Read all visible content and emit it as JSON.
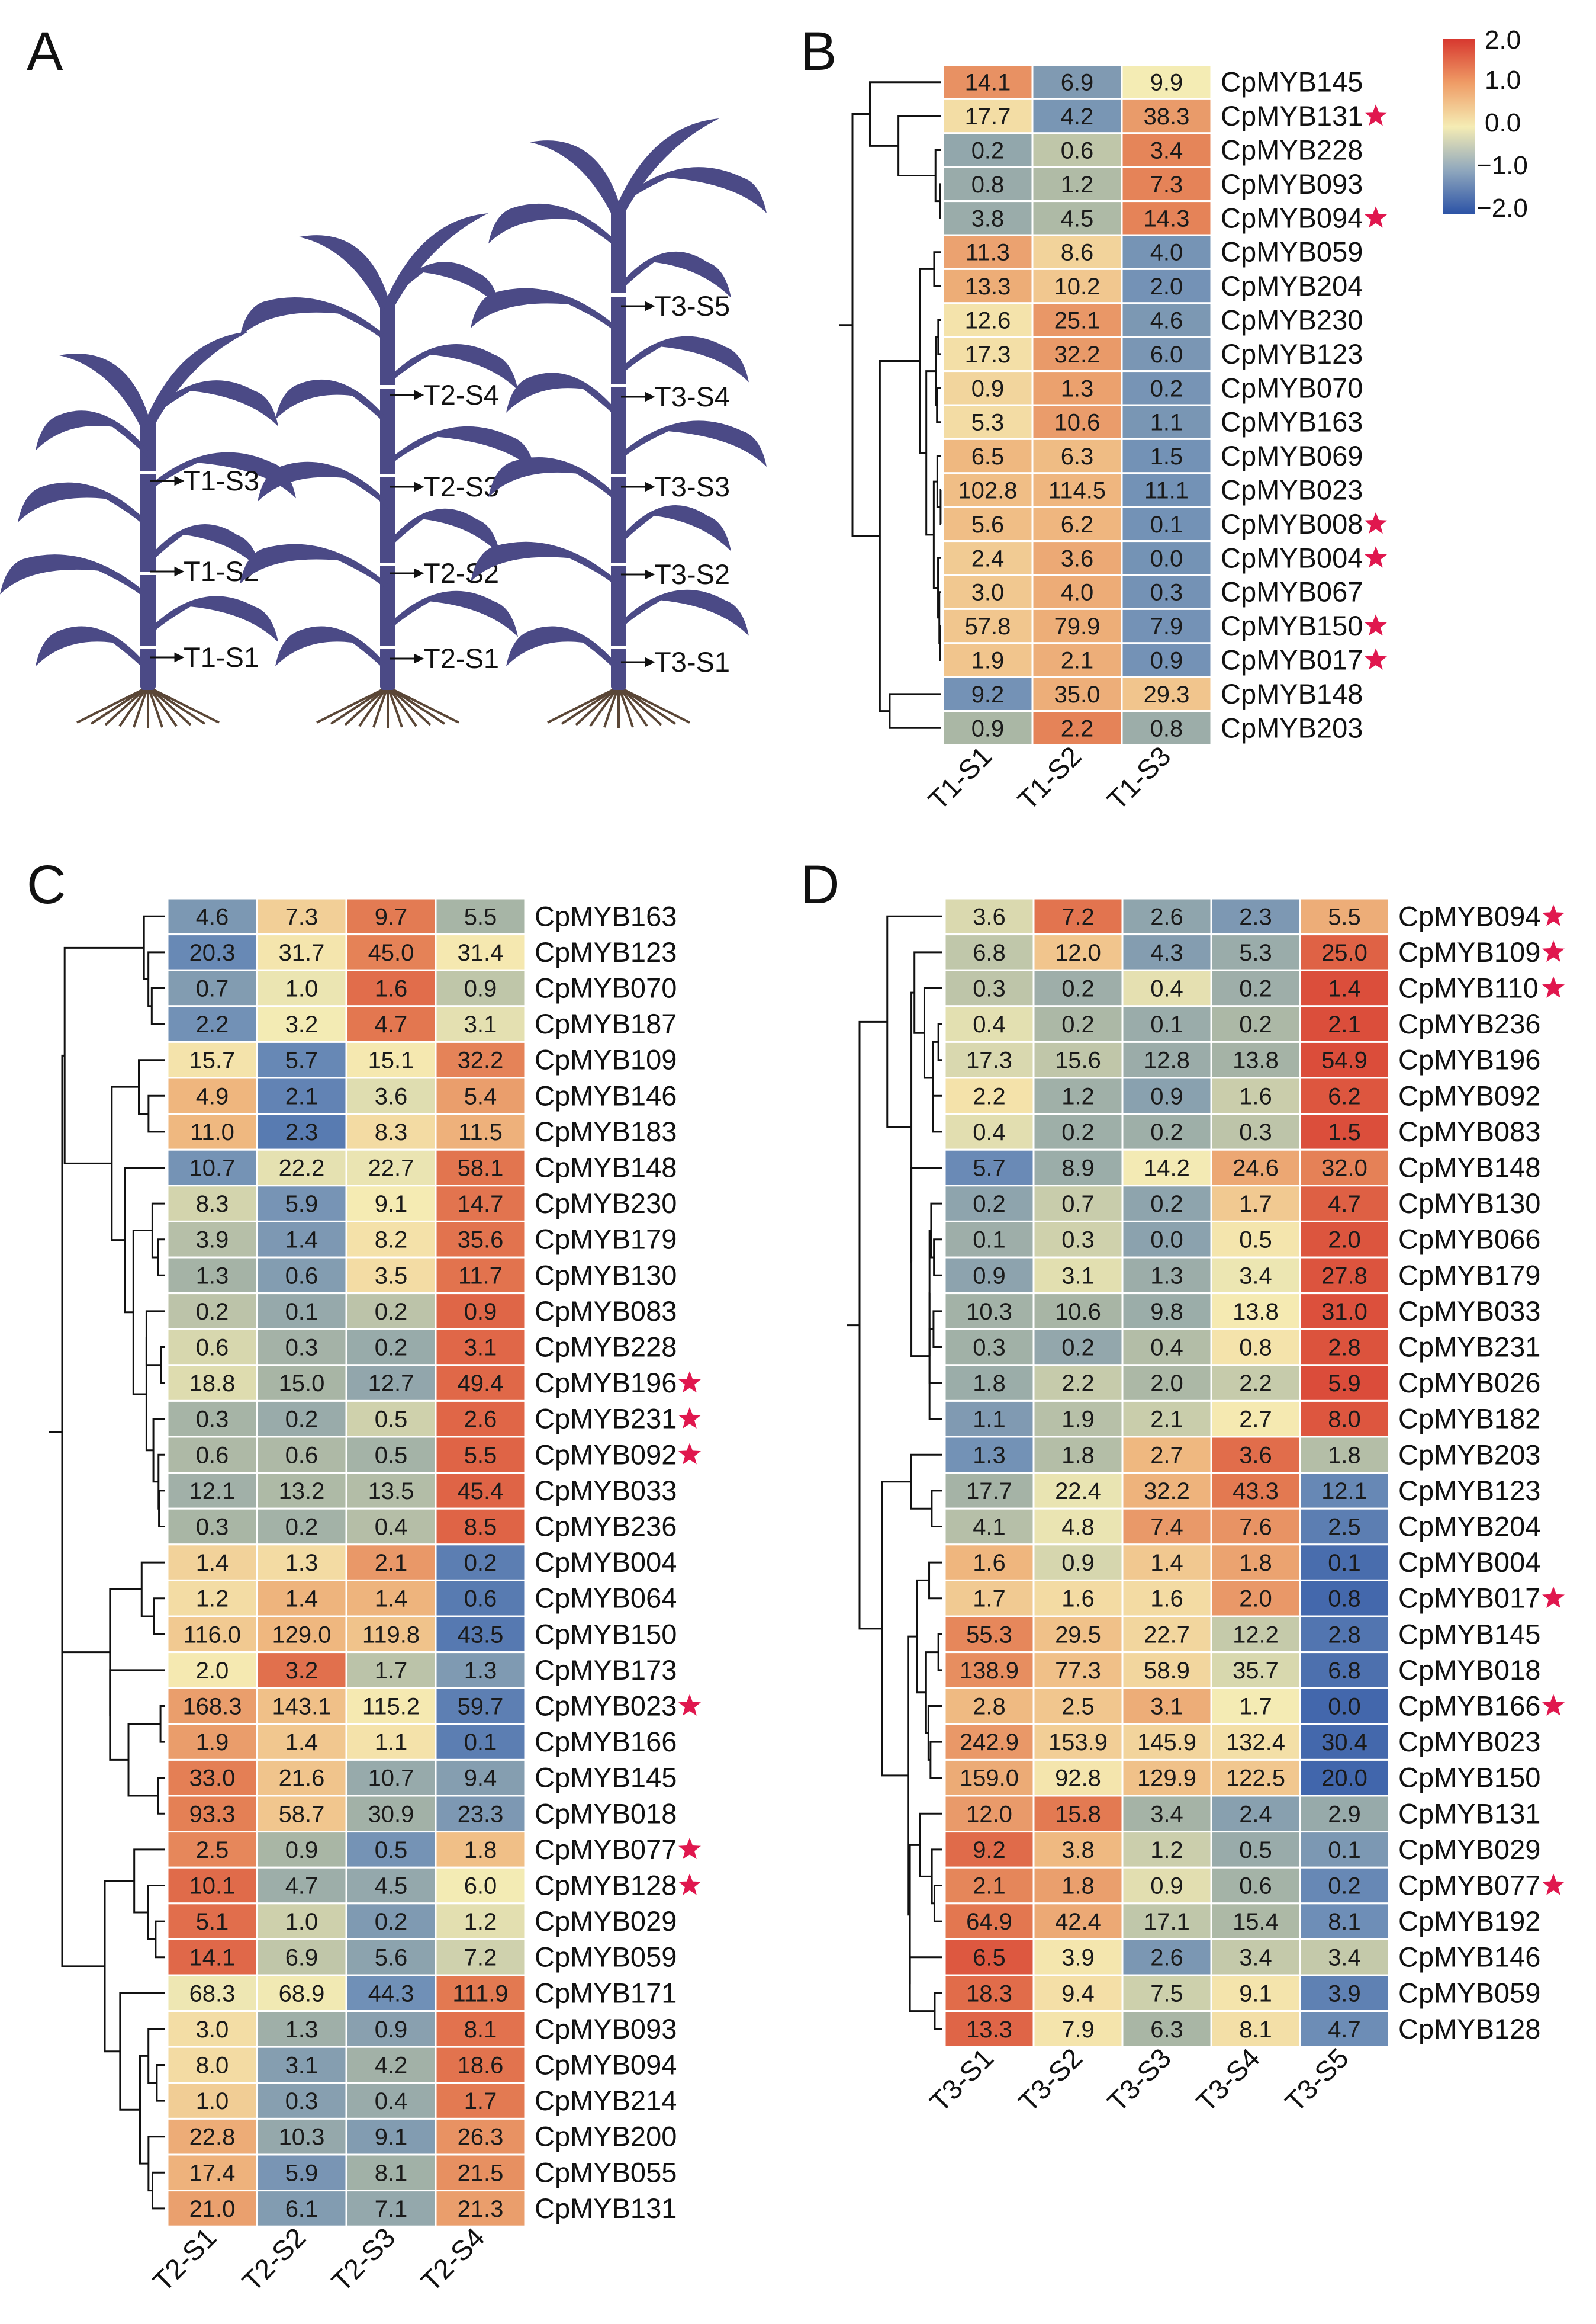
{
  "panel_letters": [
    "A",
    "B",
    "C",
    "D"
  ],
  "colors": {
    "plant": "#4b4a86",
    "plant_dark": "#3a3970",
    "root": "#5a4636",
    "star": "#e0174e",
    "dendrogram": "#111111",
    "scale_low": "#2b52a6",
    "scale_mid": "#f5ecb4",
    "scale_high": "#d7382f"
  },
  "icons": {
    "plant": "sorghum-plant-icon",
    "star": "red-star-icon",
    "arrow": "arrow-right-icon"
  },
  "plants": [
    {
      "name": "T1",
      "labels": [
        "T1-S3",
        "T1-S2",
        "T1-S1"
      ]
    },
    {
      "name": "T2",
      "labels": [
        "T2-S4",
        "T2-S3",
        "T2-S2",
        "T2-S1"
      ]
    },
    {
      "name": "T3",
      "labels": [
        "T3-S5",
        "T3-S4",
        "T3-S3",
        "T3-S2",
        "T3-S1"
      ]
    }
  ],
  "legend": {
    "ticks": [
      "2.0",
      "1.0",
      "0.0",
      "−1.0",
      "−2.0"
    ],
    "range": [
      -2.0,
      2.0
    ]
  },
  "chart_data": [
    {
      "type": "heatmap",
      "panel": "B",
      "title": "",
      "columns": [
        "T1-S1",
        "T1-S2",
        "T1-S3"
      ],
      "rows": [
        {
          "gene": "CpMYB145",
          "values": [
            14.1,
            6.9,
            9.9
          ],
          "star": false
        },
        {
          "gene": "CpMYB131",
          "values": [
            17.7,
            4.2,
            38.3
          ],
          "star": true
        },
        {
          "gene": "CpMYB228",
          "values": [
            0.2,
            0.6,
            3.4
          ],
          "star": false
        },
        {
          "gene": "CpMYB093",
          "values": [
            0.8,
            1.2,
            7.3
          ],
          "star": false
        },
        {
          "gene": "CpMYB094",
          "values": [
            3.8,
            4.5,
            14.3
          ],
          "star": true
        },
        {
          "gene": "CpMYB059",
          "values": [
            11.3,
            8.6,
            4.0
          ],
          "star": false
        },
        {
          "gene": "CpMYB204",
          "values": [
            13.3,
            10.2,
            2.0
          ],
          "star": false
        },
        {
          "gene": "CpMYB230",
          "values": [
            12.6,
            25.1,
            4.6
          ],
          "star": false
        },
        {
          "gene": "CpMYB123",
          "values": [
            17.3,
            32.2,
            6.0
          ],
          "star": false
        },
        {
          "gene": "CpMYB070",
          "values": [
            0.9,
            1.3,
            0.2
          ],
          "star": false
        },
        {
          "gene": "CpMYB163",
          "values": [
            5.3,
            10.6,
            1.1
          ],
          "star": false
        },
        {
          "gene": "CpMYB069",
          "values": [
            6.5,
            6.3,
            1.5
          ],
          "star": false
        },
        {
          "gene": "CpMYB023",
          "values": [
            102.8,
            114.5,
            11.1
          ],
          "star": false
        },
        {
          "gene": "CpMYB008",
          "values": [
            5.6,
            6.2,
            0.1
          ],
          "star": true
        },
        {
          "gene": "CpMYB004",
          "values": [
            2.4,
            3.6,
            0.0
          ],
          "star": true
        },
        {
          "gene": "CpMYB067",
          "values": [
            3.0,
            4.0,
            0.3
          ],
          "star": false
        },
        {
          "gene": "CpMYB150",
          "values": [
            57.8,
            79.9,
            7.9
          ],
          "star": true
        },
        {
          "gene": "CpMYB017",
          "values": [
            1.9,
            2.1,
            0.9
          ],
          "star": true
        },
        {
          "gene": "CpMYB148",
          "values": [
            9.2,
            35.0,
            29.3
          ],
          "star": false
        },
        {
          "gene": "CpMYB203",
          "values": [
            0.9,
            2.2,
            0.8
          ],
          "star": false
        }
      ]
    },
    {
      "type": "heatmap",
      "panel": "C",
      "title": "",
      "columns": [
        "T2-S1",
        "T2-S2",
        "T2-S3",
        "T2-S4"
      ],
      "rows": [
        {
          "gene": "CpMYB163",
          "values": [
            4.6,
            7.3,
            9.7,
            5.5
          ],
          "star": false
        },
        {
          "gene": "CpMYB123",
          "values": [
            20.3,
            31.7,
            45.0,
            31.4
          ],
          "star": false
        },
        {
          "gene": "CpMYB070",
          "values": [
            0.7,
            1.0,
            1.6,
            0.9
          ],
          "star": false
        },
        {
          "gene": "CpMYB187",
          "values": [
            2.2,
            3.2,
            4.7,
            3.1
          ],
          "star": false
        },
        {
          "gene": "CpMYB109",
          "values": [
            15.7,
            5.7,
            15.1,
            32.2
          ],
          "star": false
        },
        {
          "gene": "CpMYB146",
          "values": [
            4.9,
            2.1,
            3.6,
            5.4
          ],
          "star": false
        },
        {
          "gene": "CpMYB183",
          "values": [
            11.0,
            2.3,
            8.3,
            11.5
          ],
          "star": false
        },
        {
          "gene": "CpMYB148",
          "values": [
            10.7,
            22.2,
            22.7,
            58.1
          ],
          "star": false
        },
        {
          "gene": "CpMYB230",
          "values": [
            8.3,
            5.9,
            9.1,
            14.7
          ],
          "star": false
        },
        {
          "gene": "CpMYB179",
          "values": [
            3.9,
            1.4,
            8.2,
            35.6
          ],
          "star": false
        },
        {
          "gene": "CpMYB130",
          "values": [
            1.3,
            0.6,
            3.5,
            11.7
          ],
          "star": false
        },
        {
          "gene": "CpMYB083",
          "values": [
            0.2,
            0.1,
            0.2,
            0.9
          ],
          "star": false
        },
        {
          "gene": "CpMYB228",
          "values": [
            0.6,
            0.3,
            0.2,
            3.1
          ],
          "star": false
        },
        {
          "gene": "CpMYB196",
          "values": [
            18.8,
            15.0,
            12.7,
            49.4
          ],
          "star": true
        },
        {
          "gene": "CpMYB231",
          "values": [
            0.3,
            0.2,
            0.5,
            2.6
          ],
          "star": true
        },
        {
          "gene": "CpMYB092",
          "values": [
            0.6,
            0.6,
            0.5,
            5.5
          ],
          "star": true
        },
        {
          "gene": "CpMYB033",
          "values": [
            12.1,
            13.2,
            13.5,
            45.4
          ],
          "star": false
        },
        {
          "gene": "CpMYB236",
          "values": [
            0.3,
            0.2,
            0.4,
            8.5
          ],
          "star": false
        },
        {
          "gene": "CpMYB004",
          "values": [
            1.4,
            1.3,
            2.1,
            0.2
          ],
          "star": false
        },
        {
          "gene": "CpMYB064",
          "values": [
            1.2,
            1.4,
            1.4,
            0.6
          ],
          "star": false
        },
        {
          "gene": "CpMYB150",
          "values": [
            116.0,
            129.0,
            119.8,
            43.5
          ],
          "star": false
        },
        {
          "gene": "CpMYB173",
          "values": [
            2.0,
            3.2,
            1.7,
            1.3
          ],
          "star": false
        },
        {
          "gene": "CpMYB023",
          "values": [
            168.3,
            143.1,
            115.2,
            59.7
          ],
          "star": true
        },
        {
          "gene": "CpMYB166",
          "values": [
            1.9,
            1.4,
            1.1,
            0.1
          ],
          "star": false
        },
        {
          "gene": "CpMYB145",
          "values": [
            33.0,
            21.6,
            10.7,
            9.4
          ],
          "star": false
        },
        {
          "gene": "CpMYB018",
          "values": [
            93.3,
            58.7,
            30.9,
            23.3
          ],
          "star": false
        },
        {
          "gene": "CpMYB077",
          "values": [
            2.5,
            0.9,
            0.5,
            1.8
          ],
          "star": true
        },
        {
          "gene": "CpMYB128",
          "values": [
            10.1,
            4.7,
            4.5,
            6.0
          ],
          "star": true
        },
        {
          "gene": "CpMYB029",
          "values": [
            5.1,
            1.0,
            0.2,
            1.2
          ],
          "star": false
        },
        {
          "gene": "CpMYB059",
          "values": [
            14.1,
            6.9,
            5.6,
            7.2
          ],
          "star": false
        },
        {
          "gene": "CpMYB171",
          "values": [
            68.3,
            68.9,
            44.3,
            111.9
          ],
          "star": false
        },
        {
          "gene": "CpMYB093",
          "values": [
            3.0,
            1.3,
            0.9,
            8.1
          ],
          "star": false
        },
        {
          "gene": "CpMYB094",
          "values": [
            8.0,
            3.1,
            4.2,
            18.6
          ],
          "star": false
        },
        {
          "gene": "CpMYB214",
          "values": [
            1.0,
            0.3,
            0.4,
            1.7
          ],
          "star": false
        },
        {
          "gene": "CpMYB200",
          "values": [
            22.8,
            10.3,
            9.1,
            26.3
          ],
          "star": false
        },
        {
          "gene": "CpMYB055",
          "values": [
            17.4,
            5.9,
            8.1,
            21.5
          ],
          "star": false
        },
        {
          "gene": "CpMYB131",
          "values": [
            21.0,
            6.1,
            7.1,
            21.3
          ],
          "star": false
        }
      ]
    },
    {
      "type": "heatmap",
      "panel": "D",
      "title": "",
      "columns": [
        "T3-S1",
        "T3-S2",
        "T3-S3",
        "T3-S4",
        "T3-S5"
      ],
      "rows": [
        {
          "gene": "CpMYB094",
          "values": [
            3.6,
            7.2,
            2.6,
            2.3,
            5.5
          ],
          "star": true
        },
        {
          "gene": "CpMYB109",
          "values": [
            6.8,
            12.0,
            4.3,
            5.3,
            25.0
          ],
          "star": true
        },
        {
          "gene": "CpMYB110",
          "values": [
            0.3,
            0.2,
            0.4,
            0.2,
            1.4
          ],
          "star": true
        },
        {
          "gene": "CpMYB236",
          "values": [
            0.4,
            0.2,
            0.1,
            0.2,
            2.1
          ],
          "star": false
        },
        {
          "gene": "CpMYB196",
          "values": [
            17.3,
            15.6,
            12.8,
            13.8,
            54.9
          ],
          "star": false
        },
        {
          "gene": "CpMYB092",
          "values": [
            2.2,
            1.2,
            0.9,
            1.6,
            6.2
          ],
          "star": false
        },
        {
          "gene": "CpMYB083",
          "values": [
            0.4,
            0.2,
            0.2,
            0.3,
            1.5
          ],
          "star": false
        },
        {
          "gene": "CpMYB148",
          "values": [
            5.7,
            8.9,
            14.2,
            24.6,
            32.0
          ],
          "star": false
        },
        {
          "gene": "CpMYB130",
          "values": [
            0.2,
            0.7,
            0.2,
            1.7,
            4.7
          ],
          "star": false
        },
        {
          "gene": "CpMYB066",
          "values": [
            0.1,
            0.3,
            0.0,
            0.5,
            2.0
          ],
          "star": false
        },
        {
          "gene": "CpMYB179",
          "values": [
            0.9,
            3.1,
            1.3,
            3.4,
            27.8
          ],
          "star": false
        },
        {
          "gene": "CpMYB033",
          "values": [
            10.3,
            10.6,
            9.8,
            13.8,
            31.0
          ],
          "star": false
        },
        {
          "gene": "CpMYB231",
          "values": [
            0.3,
            0.2,
            0.4,
            0.8,
            2.8
          ],
          "star": false
        },
        {
          "gene": "CpMYB026",
          "values": [
            1.8,
            2.2,
            2.0,
            2.2,
            5.9
          ],
          "star": false
        },
        {
          "gene": "CpMYB182",
          "values": [
            1.1,
            1.9,
            2.1,
            2.7,
            8.0
          ],
          "star": false
        },
        {
          "gene": "CpMYB203",
          "values": [
            1.3,
            1.8,
            2.7,
            3.6,
            1.8
          ],
          "star": false
        },
        {
          "gene": "CpMYB123",
          "values": [
            17.7,
            22.4,
            32.2,
            43.3,
            12.1
          ],
          "star": false
        },
        {
          "gene": "CpMYB204",
          "values": [
            4.1,
            4.8,
            7.4,
            7.6,
            2.5
          ],
          "star": false
        },
        {
          "gene": "CpMYB004",
          "values": [
            1.6,
            0.9,
            1.4,
            1.8,
            0.1
          ],
          "star": false
        },
        {
          "gene": "CpMYB017",
          "values": [
            1.7,
            1.6,
            1.6,
            2.0,
            0.8
          ],
          "star": true
        },
        {
          "gene": "CpMYB145",
          "values": [
            55.3,
            29.5,
            22.7,
            12.2,
            2.8
          ],
          "star": false
        },
        {
          "gene": "CpMYB018",
          "values": [
            138.9,
            77.3,
            58.9,
            35.7,
            6.8
          ],
          "star": false
        },
        {
          "gene": "CpMYB166",
          "values": [
            2.8,
            2.5,
            3.1,
            1.7,
            0.0
          ],
          "star": true
        },
        {
          "gene": "CpMYB023",
          "values": [
            242.9,
            153.9,
            145.9,
            132.4,
            30.4
          ],
          "star": false
        },
        {
          "gene": "CpMYB150",
          "values": [
            159.0,
            92.8,
            129.9,
            122.5,
            20.0
          ],
          "star": false
        },
        {
          "gene": "CpMYB131",
          "values": [
            12.0,
            15.8,
            3.4,
            2.4,
            2.9
          ],
          "star": false
        },
        {
          "gene": "CpMYB029",
          "values": [
            9.2,
            3.8,
            1.2,
            0.5,
            0.1
          ],
          "star": false
        },
        {
          "gene": "CpMYB077",
          "values": [
            2.1,
            1.8,
            0.9,
            0.6,
            0.2
          ],
          "star": true
        },
        {
          "gene": "CpMYB192",
          "values": [
            64.9,
            42.4,
            17.1,
            15.4,
            8.1
          ],
          "star": false
        },
        {
          "gene": "CpMYB146",
          "values": [
            6.5,
            3.9,
            2.6,
            3.4,
            3.4
          ],
          "star": false
        },
        {
          "gene": "CpMYB059",
          "values": [
            18.3,
            9.4,
            7.5,
            9.1,
            3.9
          ],
          "star": false
        },
        {
          "gene": "CpMYB128",
          "values": [
            13.3,
            7.9,
            6.3,
            8.1,
            4.7
          ],
          "star": false
        }
      ]
    }
  ]
}
